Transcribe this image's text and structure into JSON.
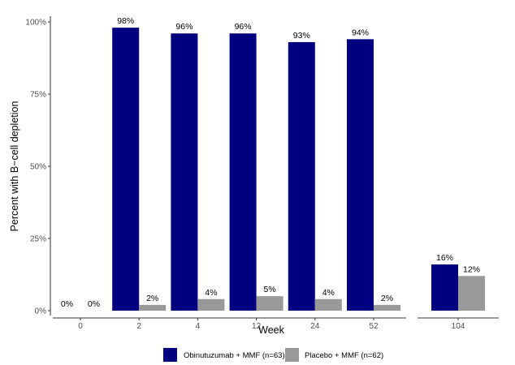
{
  "chart_data": {
    "type": "bar",
    "xlabel": "Week",
    "ylabel": "Percent with B−cell depletion",
    "ylim": [
      0,
      100
    ],
    "yticks": [
      "0%",
      "25%",
      "50%",
      "75%",
      "100%"
    ],
    "ytick_values": [
      0,
      25,
      50,
      75,
      100
    ],
    "grid": false,
    "legend_position": "bottom",
    "panels": [
      {
        "categories": [
          "0",
          "2",
          "4",
          "12",
          "24",
          "52"
        ]
      },
      {
        "categories": [
          "104"
        ]
      }
    ],
    "categories": [
      "0",
      "2",
      "4",
      "12",
      "24",
      "52",
      "104"
    ],
    "series": [
      {
        "name": "Obinutuzumab + MMF (n=63)",
        "color": "#000080",
        "values": [
          0,
          98,
          96,
          96,
          93,
          94,
          16
        ],
        "labels": [
          "0%",
          "98%",
          "96%",
          "96%",
          "93%",
          "94%",
          "16%"
        ]
      },
      {
        "name": "Placebo + MMF (n=62)",
        "color": "#999999",
        "values": [
          0,
          2,
          4,
          5,
          4,
          2,
          12
        ],
        "labels": [
          "0%",
          "2%",
          "4%",
          "5%",
          "4%",
          "2%",
          "12%"
        ]
      }
    ]
  }
}
